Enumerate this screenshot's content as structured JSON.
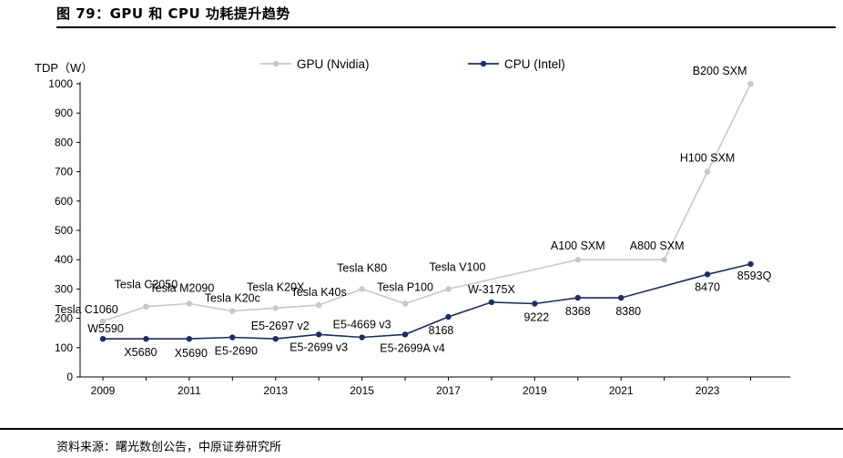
{
  "figure": {
    "title": "图 79：GPU 和 CPU 功耗提升趋势",
    "source": "资料来源：曙光数创公告，中原证券研究所"
  },
  "chart_data": {
    "type": "line",
    "ylabel": "TDP（W）",
    "xlabel": "",
    "ylim": [
      0,
      1000
    ],
    "xlim": [
      2009,
      2024
    ],
    "x_ticks": [
      "2009",
      "2011",
      "2013",
      "2015",
      "2017",
      "2019",
      "2021",
      "2023"
    ],
    "y_ticks": [
      "0",
      "100",
      "200",
      "300",
      "400",
      "500",
      "600",
      "700",
      "800",
      "900",
      "1000"
    ],
    "legend_position": "top",
    "grid": false,
    "series": [
      {
        "name": "GPU (Nvidia)",
        "color": "#c8c8c8",
        "x": [
          2009,
          2010,
          2011,
          2012,
          2013,
          2014,
          2015,
          2016,
          2017,
          2020,
          2022,
          2023,
          2024
        ],
        "values": [
          190,
          240,
          250,
          225,
          235,
          245,
          300,
          250,
          300,
          400,
          400,
          700,
          1000
        ],
        "labels": [
          "Tesla C1060",
          "Tesla C2050",
          "Tesla M2090",
          "Tesla K20c",
          "Tesla K20X",
          "Tesla K40s",
          "Tesla K80",
          "Tesla P100",
          "Tesla V100",
          "A100 SXM",
          "A800 SXM",
          "H100 SXM",
          "B200 SXM"
        ]
      },
      {
        "name": "CPU (Intel)",
        "color": "#1f2d5e",
        "x": [
          2009,
          2010,
          2011,
          2012,
          2013,
          2014,
          2015,
          2016,
          2017,
          2018,
          2019,
          2020,
          2021,
          2023,
          2024
        ],
        "values": [
          130,
          130,
          130,
          135,
          130,
          145,
          135,
          145,
          205,
          255,
          250,
          270,
          270,
          350,
          385
        ],
        "labels": [
          "W5590",
          "X5680",
          "X5690",
          "E5-2690",
          "E5-2697 v2",
          "E5-2699 v3",
          "E5-4669 v3",
          "E5-2699A v4",
          "8168",
          "W-3175X",
          "9222",
          "8368",
          "8380",
          "8470",
          "8593Q"
        ]
      }
    ]
  }
}
